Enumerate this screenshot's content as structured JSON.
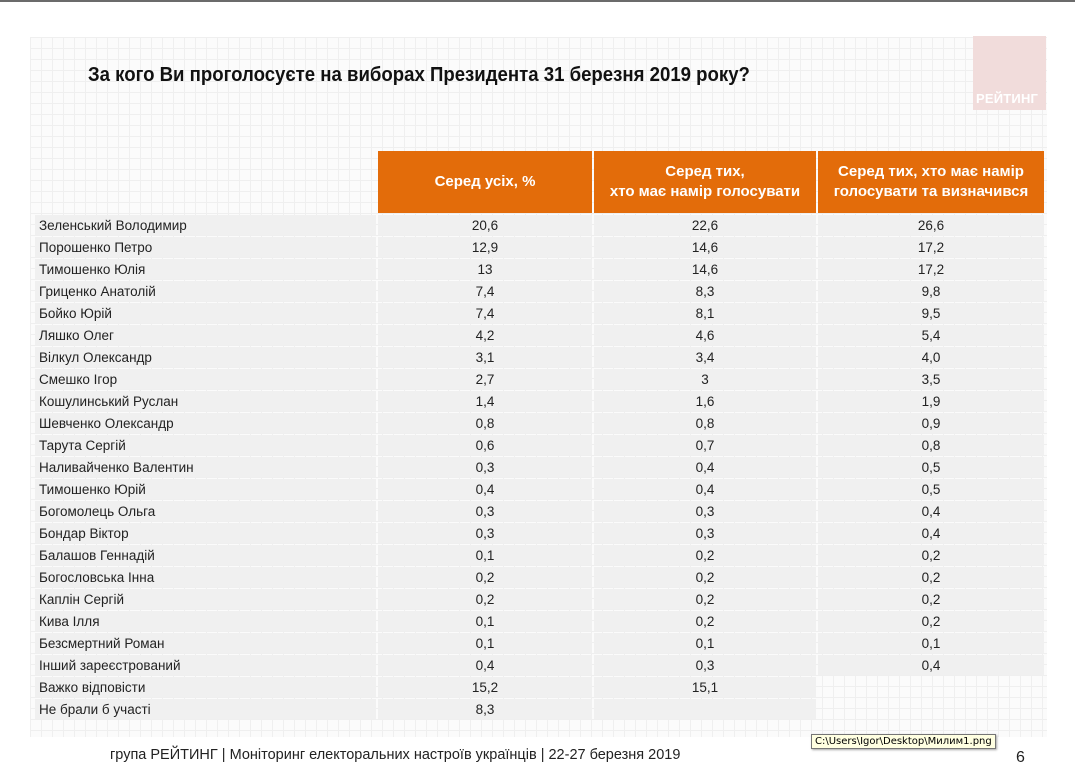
{
  "slide": {
    "title": "За кого Ви проголосуєте на виборах Президента 31 березня 2019 року?",
    "logo_text": "РЕЙТИНГ",
    "footer": "група РЕЙТИНГ | Моніторинг електоральних настроїв українців  |  22-27 березня 2019",
    "page_number": "6",
    "accent_color": "#e36c0a"
  },
  "tooltip": {
    "text": "C:\\Users\\Igor\\Desktop\\Милим1.png"
  },
  "table": {
    "headers": [
      "",
      "Серед усіх, %",
      "Серед тих,\nхто має намір голосувати",
      "Серед тих, хто має намір голосувати та визначився"
    ],
    "rows": [
      [
        "Зеленський Володимир",
        "20,6",
        "22,6",
        "26,6"
      ],
      [
        "Порошенко Петро",
        "12,9",
        "14,6",
        "17,2"
      ],
      [
        "Тимошенко Юлія",
        "13",
        "14,6",
        "17,2"
      ],
      [
        "Гриценко Анатолій",
        "7,4",
        "8,3",
        "9,8"
      ],
      [
        "Бойко Юрій",
        "7,4",
        "8,1",
        "9,5"
      ],
      [
        "Ляшко Олег",
        "4,2",
        "4,6",
        "5,4"
      ],
      [
        "Вілкул Олександр",
        "3,1",
        "3,4",
        "4,0"
      ],
      [
        "Смешко Ігор",
        "2,7",
        "3",
        "3,5"
      ],
      [
        "Кошулинський Руслан",
        "1,4",
        "1,6",
        "1,9"
      ],
      [
        "Шевченко Олександр",
        "0,8",
        "0,8",
        "0,9"
      ],
      [
        "Тарута Сергій",
        "0,6",
        "0,7",
        "0,8"
      ],
      [
        "Наливайченко Валентин",
        "0,3",
        "0,4",
        "0,5"
      ],
      [
        "Тимошенко Юрій",
        "0,4",
        "0,4",
        "0,5"
      ],
      [
        "Богомолець Ольга",
        "0,3",
        "0,3",
        "0,4"
      ],
      [
        "Бондар Віктор",
        "0,3",
        "0,3",
        "0,4"
      ],
      [
        "Балашов Геннадій",
        "0,1",
        "0,2",
        "0,2"
      ],
      [
        "Богословська Інна",
        "0,2",
        "0,2",
        "0,2"
      ],
      [
        "Каплін Сергій",
        "0,2",
        "0,2",
        "0,2"
      ],
      [
        "Кива Ілля",
        "0,1",
        "0,2",
        "0,2"
      ],
      [
        "Безсмертний Роман",
        "0,1",
        "0,1",
        "0,1"
      ],
      [
        "Інший зареєстрований",
        "0,4",
        "0,3",
        "0,4"
      ],
      [
        "Важко відповісти",
        "15,2",
        "15,1",
        ""
      ],
      [
        "Не брали б участі",
        "8,3",
        "",
        ""
      ]
    ]
  }
}
